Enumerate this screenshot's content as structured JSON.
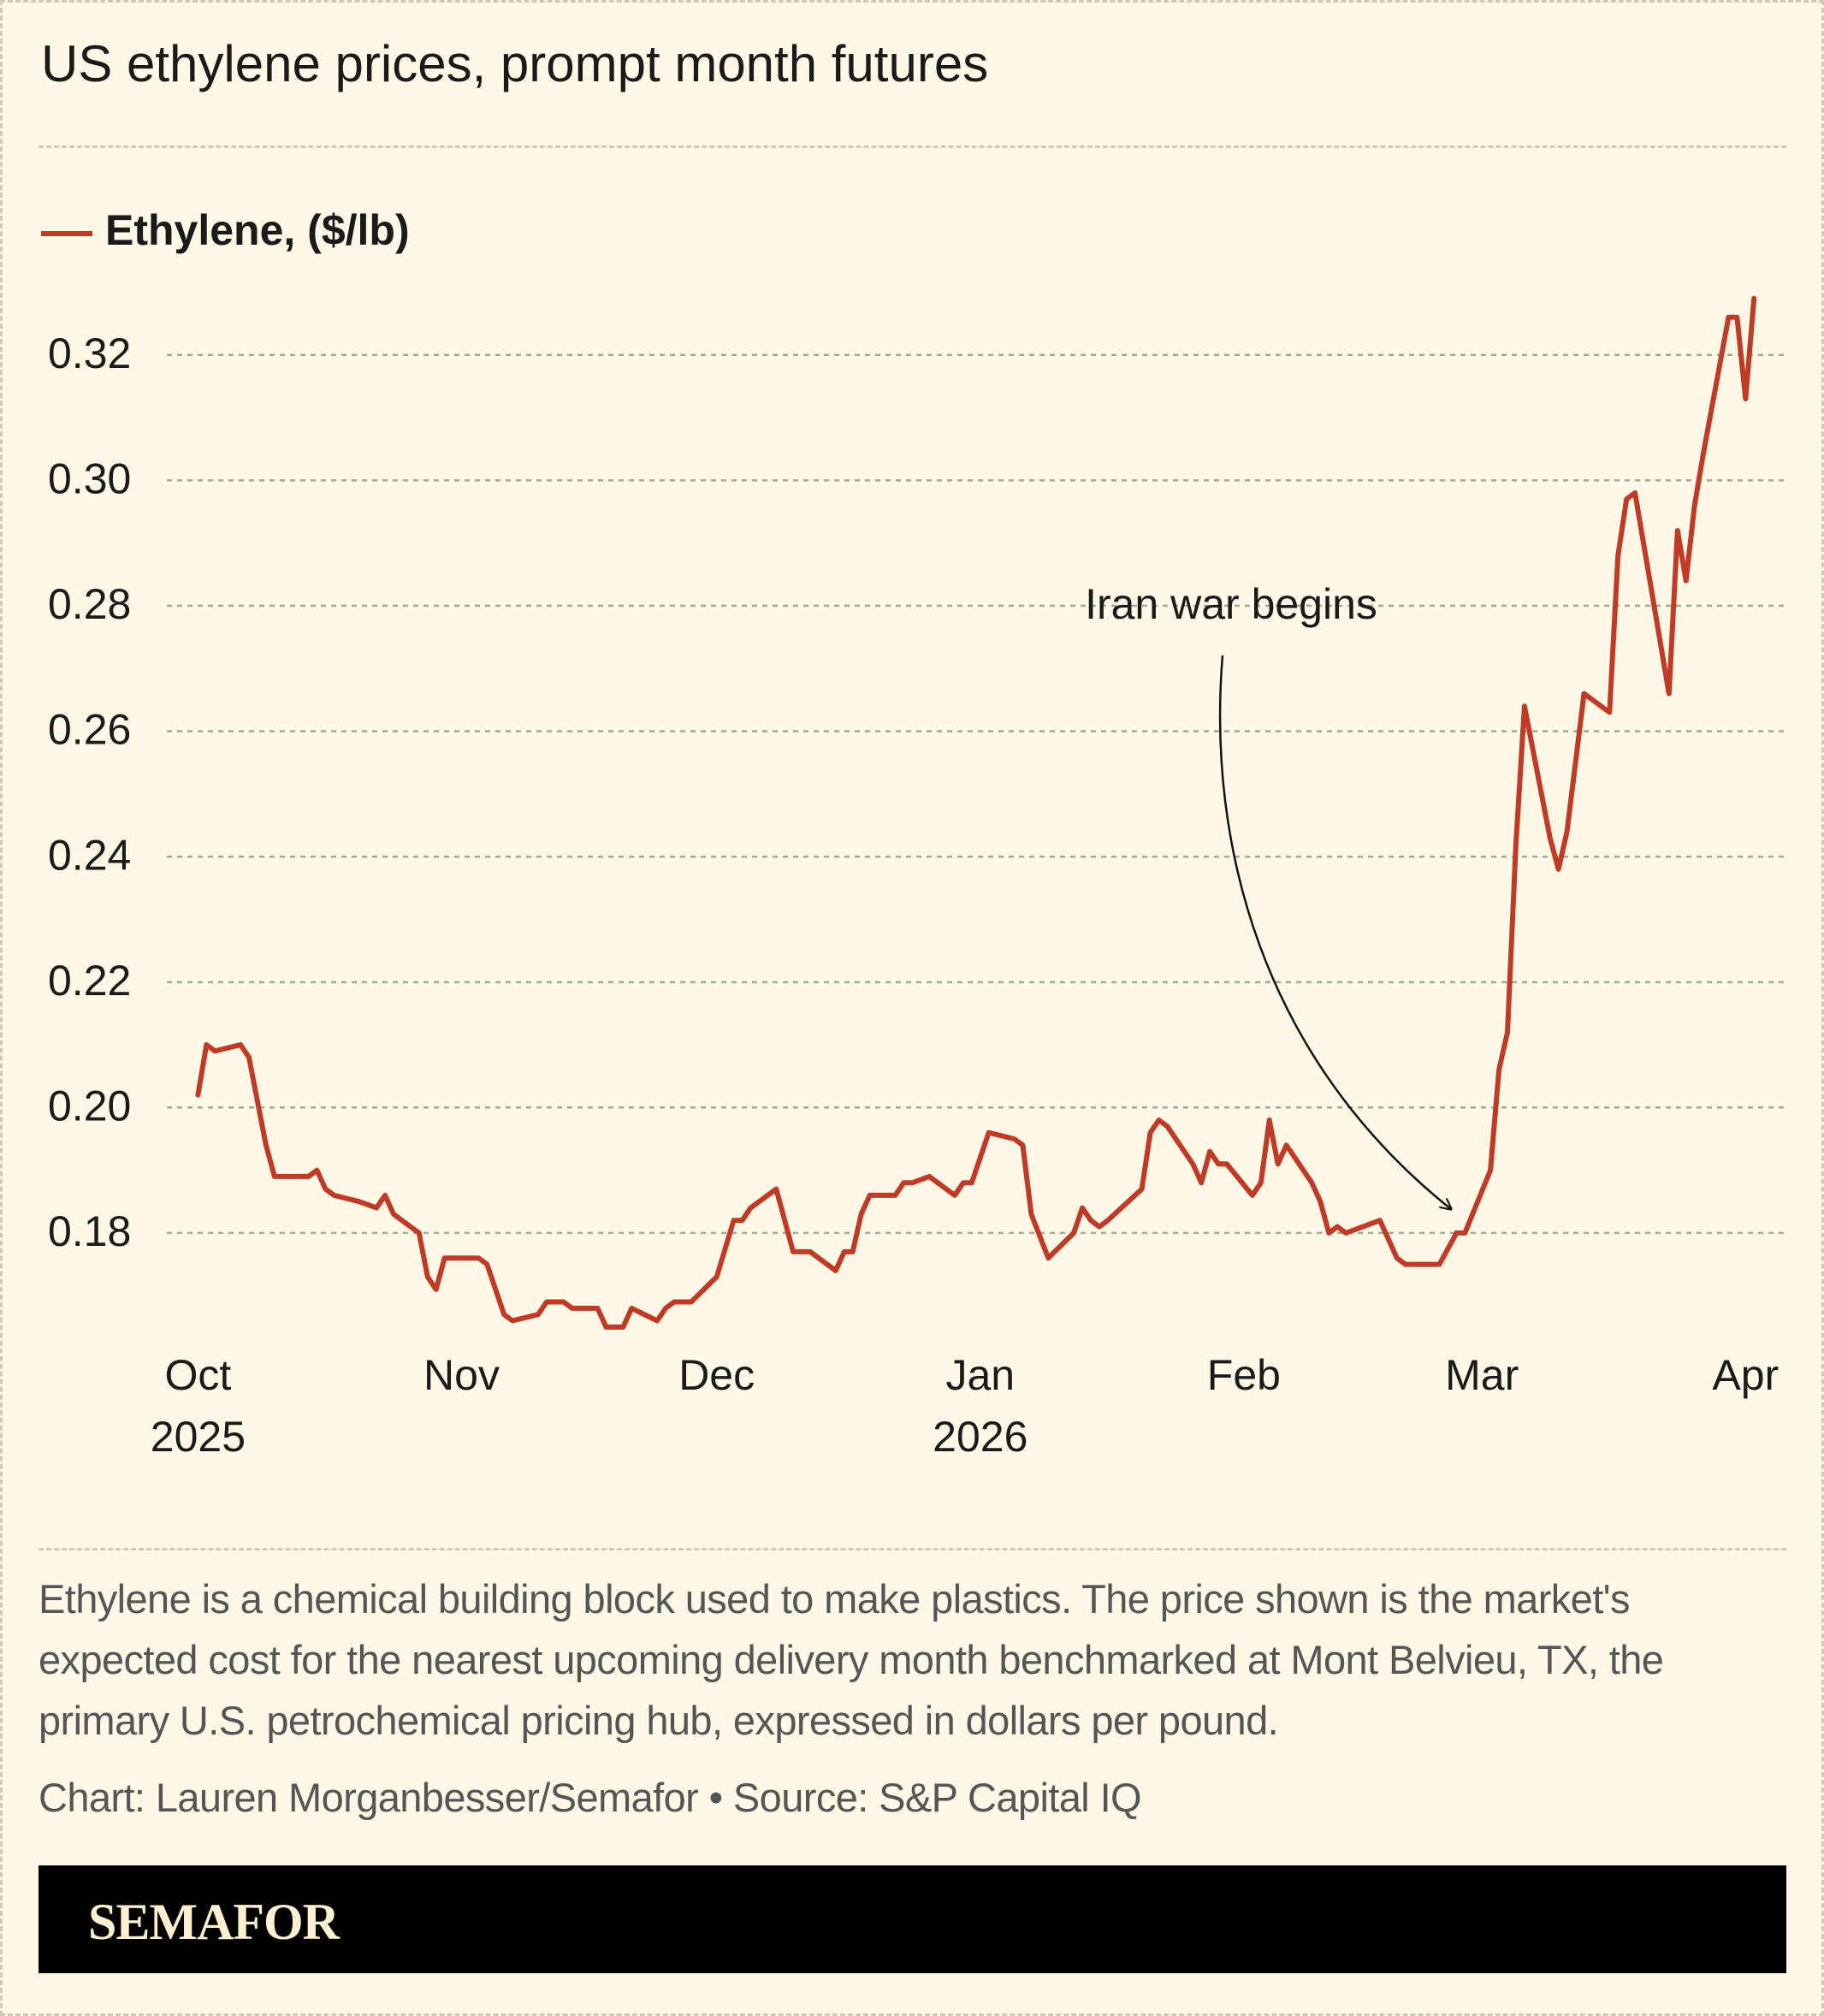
{
  "chart_data": {
    "type": "line",
    "title": "US ethylene prices, prompt month futures",
    "annotation": "Iran war begins",
    "note": "Ethylene is a chemical building block used to make plastics. The price shown is the market's expected cost for the nearest upcoming delivery month benchmarked at Mont Belvieu, TX, the primary U.S. petrochemical pricing hub, expressed in dollars per pound.",
    "source": "Chart: Lauren Morganbesser/Semafor • Source: S&P Capital IQ",
    "brand": "SEMAFOR",
    "x": [
      0,
      1,
      2,
      5,
      6,
      8,
      9,
      13,
      14,
      15,
      16,
      19,
      21,
      22,
      23,
      26,
      27,
      28,
      29,
      33,
      34,
      36,
      37,
      40,
      41,
      43,
      44,
      47,
      48,
      50,
      51,
      54,
      55,
      56,
      58,
      61,
      63,
      64,
      65,
      68,
      70,
      72,
      75,
      76,
      77,
      78,
      79,
      82,
      83,
      84,
      86,
      89,
      90,
      91,
      93,
      96,
      97,
      98,
      100,
      103,
      104,
      105,
      106,
      107,
      111,
      112,
      113,
      114,
      117,
      118,
      119,
      120,
      121,
      124,
      125,
      126,
      127,
      128,
      131,
      132,
      133,
      134,
      135,
      139,
      141,
      142,
      146,
      148,
      149,
      152,
      153,
      154,
      155,
      156,
      159,
      160,
      161,
      163,
      166,
      167,
      168,
      169,
      173,
      174,
      175,
      176,
      177,
      180,
      181,
      182,
      183
    ],
    "series": [
      {
        "name": "Ethylene, ($/lb)",
        "color": "#bf3a27",
        "values": [
          0.202,
          0.21,
          0.209,
          0.21,
          0.208,
          0.194,
          0.189,
          0.189,
          0.19,
          0.187,
          0.186,
          0.185,
          0.184,
          0.186,
          0.183,
          0.18,
          0.173,
          0.171,
          0.176,
          0.176,
          0.175,
          0.167,
          0.166,
          0.167,
          0.169,
          0.169,
          0.168,
          0.168,
          0.165,
          0.165,
          0.168,
          0.166,
          0.168,
          0.169,
          0.169,
          0.173,
          0.182,
          0.182,
          0.184,
          0.187,
          0.177,
          0.177,
          0.174,
          0.177,
          0.177,
          0.183,
          0.186,
          0.186,
          0.188,
          0.188,
          0.189,
          0.186,
          0.188,
          0.188,
          0.196,
          0.195,
          0.194,
          0.183,
          0.176,
          0.18,
          0.184,
          0.182,
          0.181,
          0.182,
          0.187,
          0.196,
          0.198,
          0.197,
          0.191,
          0.188,
          0.193,
          0.191,
          0.191,
          0.186,
          0.188,
          0.198,
          0.191,
          0.194,
          0.188,
          0.185,
          0.18,
          0.181,
          0.18,
          0.182,
          0.176,
          0.175,
          0.175,
          0.18,
          0.18,
          0.19,
          0.206,
          0.212,
          0.242,
          0.264,
          0.243,
          0.238,
          0.244,
          0.266,
          0.263,
          0.288,
          0.297,
          0.298,
          0.266,
          0.292,
          0.284,
          0.296,
          0.304,
          0.326,
          0.326,
          0.313,
          0.329
        ]
      }
    ],
    "xlim": [
      0,
      183
    ],
    "xticks": [
      {
        "value": 0,
        "label": "Oct",
        "year": "2025"
      },
      {
        "value": 31,
        "label": "Nov"
      },
      {
        "value": 61,
        "label": "Dec"
      },
      {
        "value": 92,
        "label": "Jan",
        "year": "2026"
      },
      {
        "value": 123,
        "label": "Feb"
      },
      {
        "value": 151,
        "label": "Mar"
      },
      {
        "value": 182,
        "label": "Apr"
      }
    ],
    "ylim": [
      0.16,
      0.335
    ],
    "yticks": [
      0.18,
      {
        "value": 0.2,
        "label": "0.20"
      },
      0.22,
      0.24,
      0.26,
      0.28,
      {
        "value": 0.3,
        "label": "0.30"
      },
      0.32
    ],
    "grid": true
  }
}
